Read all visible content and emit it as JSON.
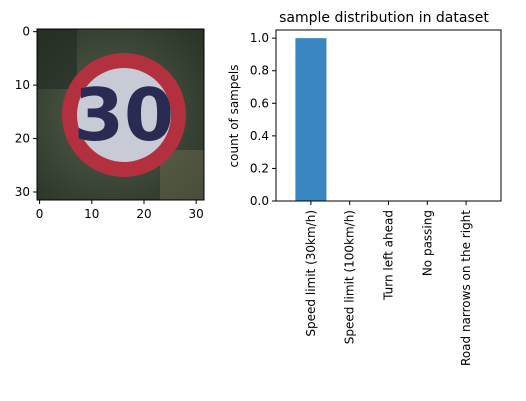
{
  "image_panel": {
    "xticks": [
      "0",
      "10",
      "20",
      "30"
    ],
    "yticks": [
      "0",
      "10",
      "20",
      "30"
    ],
    "sign": {
      "speed_text": "30",
      "ring_color": "#b3303e",
      "inner_color": "#c8cbd6",
      "digit_color": "#2a2b52"
    },
    "colors": {
      "background_dark": "#2f3a2c",
      "background_mid": "#4a5244"
    }
  },
  "chart_data": {
    "type": "bar",
    "title": "sample distribution in dataset",
    "xlabel": "",
    "ylabel": "count of sampels",
    "categories": [
      "Speed limit (30km/h)",
      "Speed limit (100km/h)",
      "Turn left ahead",
      "No passing",
      "Road narrows on the right"
    ],
    "values": [
      1.0,
      0.0,
      0.0,
      0.0,
      0.0
    ],
    "yticks": [
      "0.0",
      "0.2",
      "0.4",
      "0.6",
      "0.8",
      "1.0"
    ],
    "ylim": [
      0,
      1.05
    ],
    "bar_color": "#3a86c0",
    "grid": false
  }
}
